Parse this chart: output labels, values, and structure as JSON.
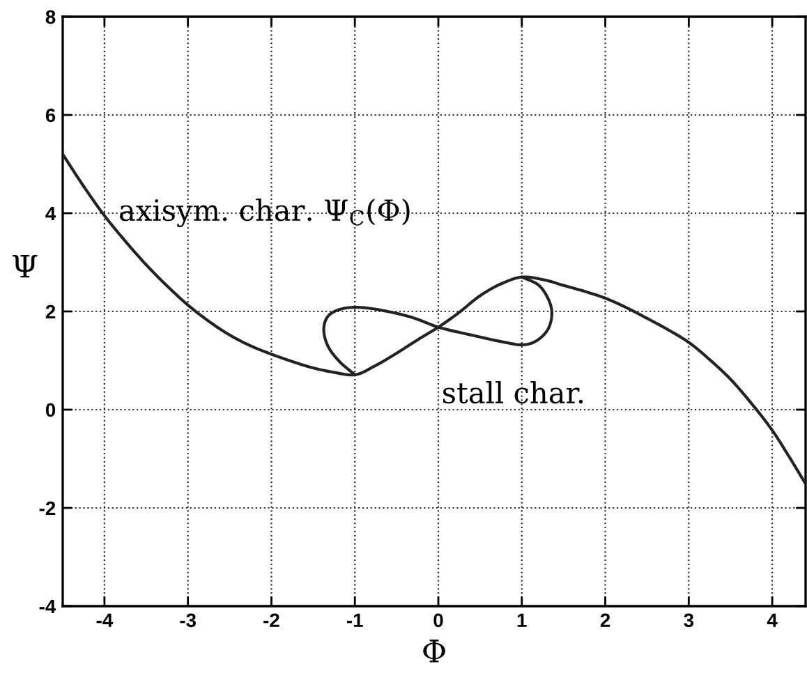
{
  "chart_data": {
    "type": "line",
    "xlabel": "Φ",
    "ylabel": "Ψ",
    "xlim": [
      -4.5,
      4.4
    ],
    "ylim": [
      -4,
      8
    ],
    "xticks": [
      -4,
      -3,
      -2,
      -1,
      0,
      1,
      2,
      3,
      4
    ],
    "yticks": [
      -4,
      -2,
      0,
      2,
      4,
      6,
      8
    ],
    "grid": true,
    "series": [
      {
        "color": "#222222",
        "x": [
          -4.5,
          -4.25,
          -4,
          -3.75,
          -3.5,
          -3.25,
          -3,
          -2.75,
          -2.5,
          -2.25,
          -2,
          -1.75,
          -1.5,
          -1.25,
          -1,
          -0.75,
          -0.5,
          -0.25,
          0,
          0.25,
          0.5,
          0.75,
          1,
          1.25,
          1.5,
          1.75,
          2,
          2.25,
          2.5,
          2.75,
          3,
          3.25,
          3.5,
          3.75,
          4,
          4.2,
          4.4
        ],
        "values": [
          5.2,
          4.55,
          3.95,
          3.43,
          2.95,
          2.52,
          2.13,
          1.8,
          1.52,
          1.3,
          1.13,
          0.98,
          0.85,
          0.76,
          0.71,
          0.9,
          1.15,
          1.42,
          1.68,
          1.98,
          2.32,
          2.56,
          2.7,
          2.65,
          2.53,
          2.41,
          2.27,
          2.08,
          1.86,
          1.63,
          1.37,
          1.02,
          0.62,
          0.13,
          -0.42,
          -0.95,
          -1.51
        ]
      },
      {
        "color": "#222222",
        "x": [
          -1,
          -1.19,
          -1.33,
          -1.37,
          -1.3,
          -1.14,
          -0.92,
          -0.58,
          -0.3,
          0,
          0.42,
          0.8,
          1.0,
          1.14,
          1.3,
          1.36,
          1.3,
          1.19,
          1.0
        ],
        "values": [
          0.71,
          0.99,
          1.32,
          1.7,
          1.94,
          2.06,
          2.08,
          1.99,
          1.87,
          1.68,
          1.51,
          1.37,
          1.32,
          1.37,
          1.6,
          1.98,
          2.31,
          2.55,
          2.7
        ]
      }
    ],
    "annotations": [
      "axisym. char. Ψ$_{C}$(Φ)",
      "stall char."
    ]
  }
}
